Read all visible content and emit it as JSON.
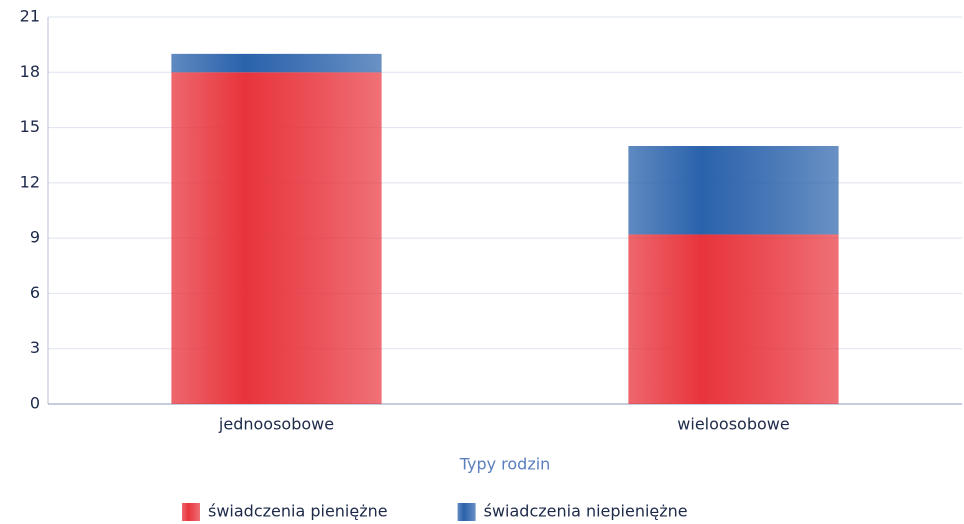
{
  "chart_data": {
    "type": "stacked_bar",
    "categories": [
      "jednoosobowe",
      "wieloosobowe"
    ],
    "series": [
      {
        "name": "świadczenia pieniężne",
        "color": "#e8343c",
        "values": [
          18,
          9.2
        ]
      },
      {
        "name": "świadczenia niepieniężne",
        "color": "#2a62ab",
        "values": [
          1,
          4.8
        ]
      }
    ],
    "x_label": "Typy rodzin",
    "ylim": [
      0,
      21
    ],
    "yticks": [
      0,
      3,
      6,
      9,
      12,
      15,
      18,
      21
    ],
    "grid": true,
    "legend": "bottom"
  }
}
